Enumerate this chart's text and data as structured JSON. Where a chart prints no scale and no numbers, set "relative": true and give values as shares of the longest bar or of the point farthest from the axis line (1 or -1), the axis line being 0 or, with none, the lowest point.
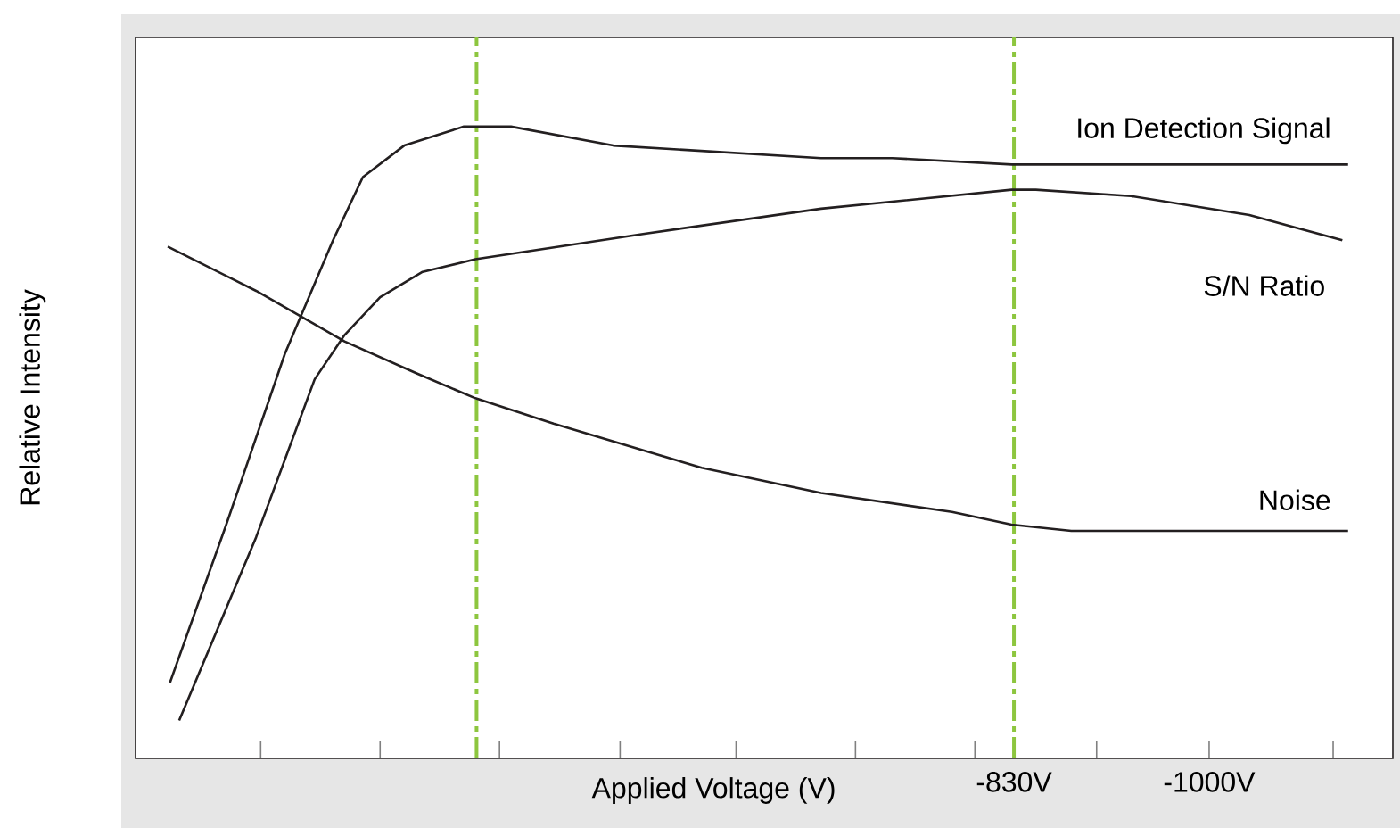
{
  "chart_data": {
    "type": "line",
    "xlabel": "Applied Voltage (V)",
    "ylabel": "Relative Intensity",
    "relative": true,
    "xlim": [
      -65,
      -1160
    ],
    "xticks": [
      {
        "value": -174,
        "label": null
      },
      {
        "value": -278,
        "label": null
      },
      {
        "value": -382,
        "label": null
      },
      {
        "value": -487,
        "label": null
      },
      {
        "value": -588,
        "label": null
      },
      {
        "value": -692,
        "label": null
      },
      {
        "value": -796,
        "label": null
      },
      {
        "value": -830,
        "label": "-830V"
      },
      {
        "value": -902,
        "label": null
      },
      {
        "value": -1000,
        "label": "-1000V"
      },
      {
        "value": -1108,
        "label": null
      }
    ],
    "series": [
      {
        "name": "Ion Detection Signal",
        "color": "#231f20",
        "x": [
          -95,
          -144,
          -195,
          -237,
          -263,
          -299,
          -351,
          -392,
          -481,
          -662,
          -724,
          -828,
          -932,
          -1121
        ],
        "values": [
          0.12,
          0.37,
          0.64,
          0.82,
          0.92,
          0.97,
          1.0,
          1.0,
          0.97,
          0.95,
          0.95,
          0.94,
          0.94,
          0.94
        ]
      },
      {
        "name": "S/N Ratio",
        "color": "#231f20",
        "x": [
          -103,
          -170,
          -221,
          -247,
          -278,
          -315,
          -361,
          -507,
          -662,
          -828,
          -849,
          -932,
          -1035,
          -1116
        ],
        "values": [
          0.06,
          0.35,
          0.6,
          0.67,
          0.73,
          0.77,
          0.79,
          0.83,
          0.87,
          0.9,
          0.9,
          0.89,
          0.86,
          0.82
        ]
      },
      {
        "name": "Noise",
        "color": "#231f20",
        "x": [
          -93,
          -170,
          -247,
          -309,
          -361,
          -429,
          -558,
          -662,
          -776,
          -828,
          -880,
          -984,
          -1121
        ],
        "values": [
          0.81,
          0.74,
          0.66,
          0.61,
          0.57,
          0.53,
          0.46,
          0.42,
          0.39,
          0.37,
          0.36,
          0.36,
          0.36
        ]
      }
    ],
    "ref_lines": [
      {
        "axis": "x",
        "value": -362,
        "color": "#8dc63f",
        "line_style": "dashdot"
      },
      {
        "axis": "x",
        "value": -830,
        "color": "#8dc63f",
        "line_style": "dashdot"
      }
    ],
    "grid": false,
    "marker": "none",
    "line_style": "solid"
  }
}
